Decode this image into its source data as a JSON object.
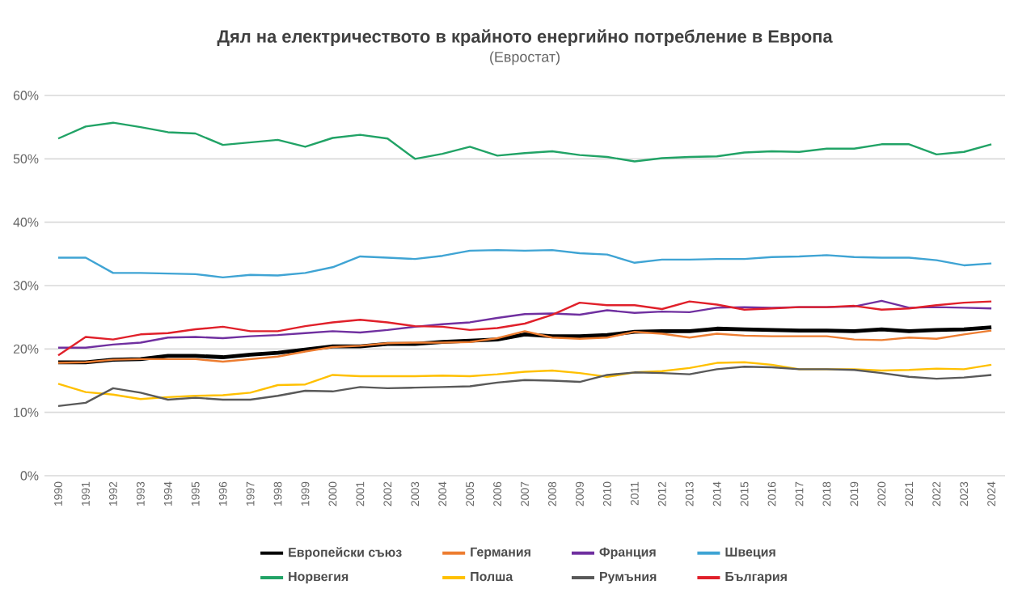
{
  "chart_data": {
    "type": "line",
    "title": "Дял на електричеството в крайното енергийно потребление в Европа",
    "subtitle": "(Евростат)",
    "categories": [
      "1990",
      "1991",
      "1992",
      "1993",
      "1994",
      "1995",
      "1996",
      "1997",
      "1998",
      "1999",
      "2000",
      "2001",
      "2002",
      "2003",
      "2004",
      "2005",
      "2006",
      "2007",
      "2008",
      "2009",
      "2010",
      "2011",
      "2012",
      "2013",
      "2014",
      "2015",
      "2016",
      "2017",
      "2018",
      "2019",
      "2020",
      "2021",
      "2022",
      "2023",
      "2024"
    ],
    "ylim": [
      0,
      60
    ],
    "yticks": [
      {
        "value": 0,
        "label": "0%"
      },
      {
        "value": 10,
        "label": "10%"
      },
      {
        "value": 20,
        "label": "20%"
      },
      {
        "value": 30,
        "label": "30%"
      },
      {
        "value": 40,
        "label": "40%"
      },
      {
        "value": 50,
        "label": "50%"
      },
      {
        "value": 60,
        "label": "60%"
      }
    ],
    "grid": "y",
    "legend": "bottom",
    "marker": "none",
    "line_style": "solid",
    "series": [
      {
        "name": "Европейски съюз",
        "color": "#000000",
        "values": [
          17.9,
          17.9,
          18.3,
          18.4,
          18.9,
          18.9,
          18.7,
          19.1,
          19.4,
          19.9,
          20.4,
          20.4,
          20.8,
          20.8,
          21.1,
          21.3,
          21.5,
          22.3,
          22.0,
          22.0,
          22.2,
          22.7,
          22.8,
          22.8,
          23.2,
          23.1,
          23.0,
          22.9,
          22.9,
          22.8,
          23.1,
          22.8,
          23.0,
          23.1,
          23.4
        ]
      },
      {
        "name": "Германия",
        "color": "#ed7d31",
        "values": [
          17.8,
          17.9,
          18.3,
          18.4,
          18.4,
          18.4,
          18.0,
          18.4,
          18.8,
          19.6,
          20.3,
          20.5,
          20.9,
          21.0,
          21.0,
          21.1,
          21.7,
          22.8,
          21.8,
          21.6,
          21.8,
          22.7,
          22.4,
          21.8,
          22.4,
          22.1,
          22.0,
          22.0,
          22.0,
          21.5,
          21.4,
          21.8,
          21.6,
          22.3,
          22.9
        ]
      },
      {
        "name": "Франция",
        "color": "#7030a0",
        "values": [
          20.2,
          20.2,
          20.7,
          21.0,
          21.8,
          21.9,
          21.7,
          22.0,
          22.2,
          22.5,
          22.8,
          22.6,
          23.0,
          23.5,
          23.9,
          24.2,
          24.9,
          25.5,
          25.6,
          25.4,
          26.1,
          25.7,
          25.9,
          25.8,
          26.5,
          26.6,
          26.5,
          26.6,
          26.6,
          26.7,
          27.6,
          26.5,
          26.6,
          26.5,
          26.4
        ]
      },
      {
        "name": "Швеция",
        "color": "#3fa4d4",
        "values": [
          34.4,
          34.4,
          32.0,
          32.0,
          31.9,
          31.8,
          31.3,
          31.7,
          31.6,
          32.0,
          32.9,
          34.6,
          34.4,
          34.2,
          34.7,
          35.5,
          35.6,
          35.5,
          35.6,
          35.1,
          34.9,
          33.6,
          34.1,
          34.1,
          34.2,
          34.2,
          34.5,
          34.6,
          34.8,
          34.5,
          34.4,
          34.4,
          34.0,
          33.2,
          33.5
        ]
      },
      {
        "name": "Норвегия",
        "color": "#21a366",
        "values": [
          53.2,
          55.1,
          55.7,
          55.0,
          54.2,
          54.0,
          52.2,
          52.6,
          53.0,
          51.9,
          53.3,
          53.8,
          53.2,
          50.0,
          50.8,
          51.9,
          50.5,
          50.9,
          51.2,
          50.6,
          50.3,
          49.6,
          50.1,
          50.3,
          50.4,
          51.0,
          51.2,
          51.1,
          51.6,
          51.6,
          52.3,
          52.3,
          50.7,
          51.1,
          52.3
        ]
      },
      {
        "name": "Полша",
        "color": "#ffc000",
        "values": [
          14.5,
          13.2,
          12.8,
          12.1,
          12.4,
          12.6,
          12.7,
          13.1,
          14.3,
          14.4,
          15.9,
          15.7,
          15.7,
          15.7,
          15.8,
          15.7,
          16.0,
          16.4,
          16.6,
          16.2,
          15.6,
          16.3,
          16.5,
          17.0,
          17.8,
          17.9,
          17.5,
          16.8,
          16.8,
          16.8,
          16.6,
          16.7,
          16.9,
          16.8,
          17.5
        ]
      },
      {
        "name": "Румъния",
        "color": "#595959",
        "values": [
          11.0,
          11.5,
          13.8,
          13.1,
          12.0,
          12.3,
          12.0,
          12.0,
          12.6,
          13.4,
          13.3,
          14.0,
          13.8,
          13.9,
          14.0,
          14.1,
          14.7,
          15.1,
          15.0,
          14.8,
          15.9,
          16.3,
          16.2,
          16.0,
          16.8,
          17.2,
          17.1,
          16.8,
          16.8,
          16.7,
          16.2,
          15.6,
          15.3,
          15.5,
          15.9
        ]
      },
      {
        "name": "България",
        "color": "#e0202a",
        "values": [
          19.0,
          21.9,
          21.5,
          22.3,
          22.5,
          23.1,
          23.5,
          22.8,
          22.8,
          23.6,
          24.2,
          24.6,
          24.2,
          23.6,
          23.5,
          23.0,
          23.3,
          24.0,
          25.4,
          27.3,
          26.9,
          26.9,
          26.3,
          27.5,
          27.0,
          26.2,
          26.4,
          26.6,
          26.6,
          26.8,
          26.2,
          26.4,
          26.9,
          27.3,
          27.5
        ]
      }
    ]
  }
}
